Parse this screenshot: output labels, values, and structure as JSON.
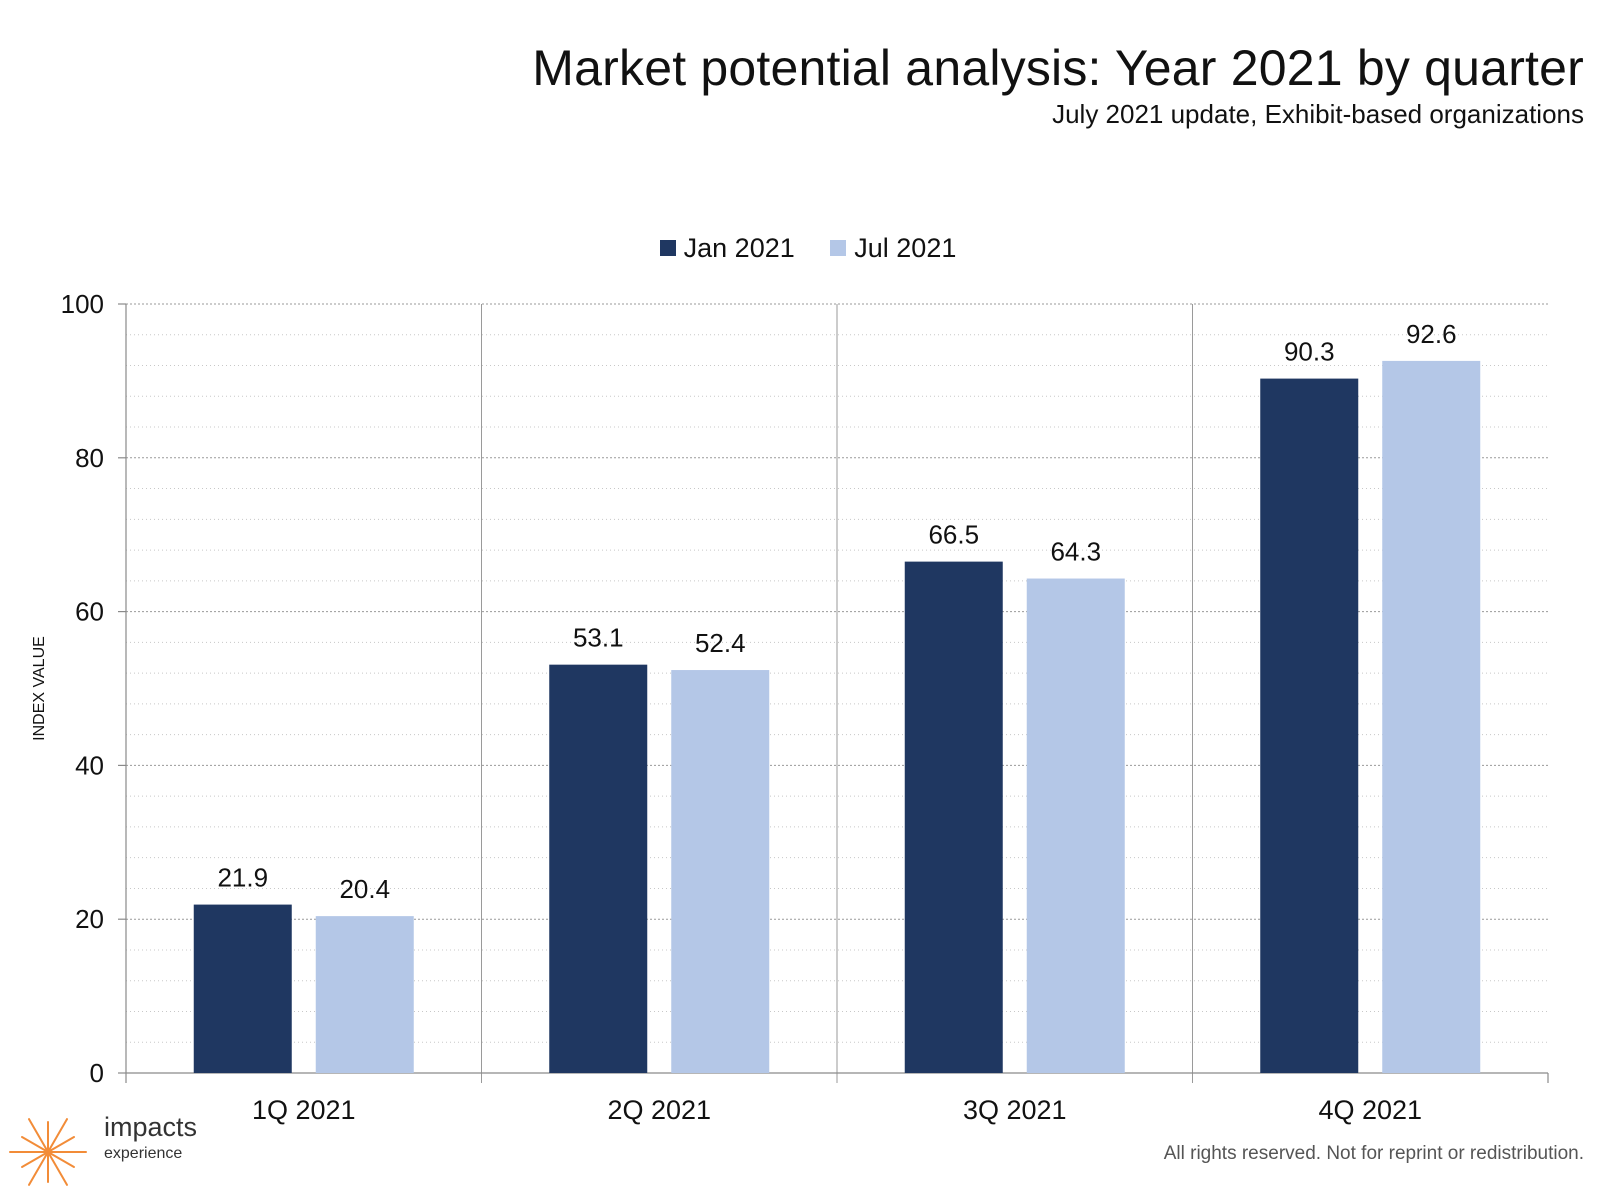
{
  "header": {
    "title": "Market potential analysis: Year 2021 by quarter",
    "subtitle": "July 2021 update, Exhibit-based organizations"
  },
  "chart_data": {
    "type": "bar",
    "title": "Market potential analysis: Year 2021 by quarter",
    "subtitle": "July 2021 update, Exhibit-based organizations",
    "categories": [
      "1Q 2021",
      "2Q 2021",
      "3Q 2021",
      "4Q 2021"
    ],
    "series": [
      {
        "name": "Jan 2021",
        "color": "#1f3761",
        "values": [
          21.9,
          53.1,
          66.5,
          90.3
        ]
      },
      {
        "name": "Jul 2021",
        "color": "#b4c7e7",
        "values": [
          20.4,
          52.4,
          64.3,
          92.6
        ]
      }
    ],
    "xlabel": "",
    "ylabel": "INDEX VALUE",
    "ylim": [
      0,
      100
    ],
    "yticks": [
      0,
      20,
      40,
      60,
      80,
      100
    ],
    "grid": true,
    "legend_position": "top-center",
    "data_labels": true
  },
  "brand": {
    "name": "impacts",
    "tagline": "experience",
    "icon": "starburst-icon",
    "accent_color": "#f28c38"
  },
  "footer": {
    "notice": "All rights reserved. Not for reprint or redistribution."
  }
}
